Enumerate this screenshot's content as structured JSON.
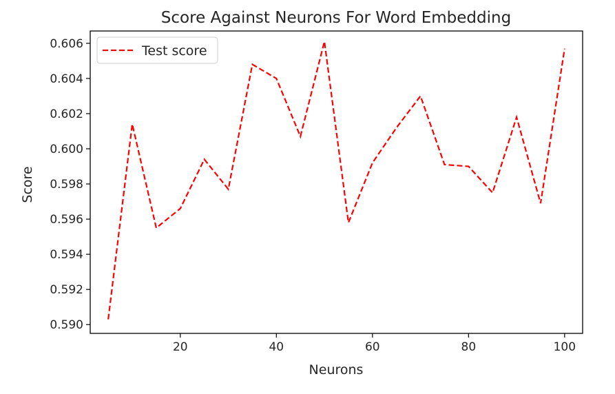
{
  "chart_data": {
    "type": "line",
    "title": "Score Against Neurons For Word Embedding",
    "xlabel": "Neurons",
    "ylabel": "Score",
    "xlim": [
      1.25,
      103.75
    ],
    "ylim": [
      0.5895,
      0.6067
    ],
    "x_ticks": [
      20,
      40,
      60,
      80,
      100
    ],
    "x_tick_labels": [
      "20",
      "40",
      "60",
      "80",
      "100"
    ],
    "y_ticks": [
      0.59,
      0.592,
      0.594,
      0.596,
      0.598,
      0.6,
      0.602,
      0.604,
      0.606
    ],
    "y_tick_labels": [
      "0.590",
      "0.592",
      "0.594",
      "0.596",
      "0.598",
      "0.600",
      "0.602",
      "0.604",
      "0.606"
    ],
    "grid": false,
    "legend": {
      "position": "top-left"
    },
    "series": [
      {
        "name": "Test score",
        "color": "#ff0000",
        "line_style": "dashed",
        "x": [
          5,
          10,
          15,
          20,
          25,
          30,
          35,
          40,
          45,
          50,
          55,
          60,
          65,
          70,
          75,
          80,
          85,
          90,
          95,
          100
        ],
        "y": [
          0.5903,
          0.6014,
          0.5955,
          0.5966,
          0.5994,
          0.5977,
          0.6048,
          0.604,
          0.6007,
          0.6061,
          0.5958,
          0.5992,
          0.6012,
          0.603,
          0.5991,
          0.599,
          0.5975,
          0.6018,
          0.5969,
          0.6057
        ]
      }
    ]
  }
}
